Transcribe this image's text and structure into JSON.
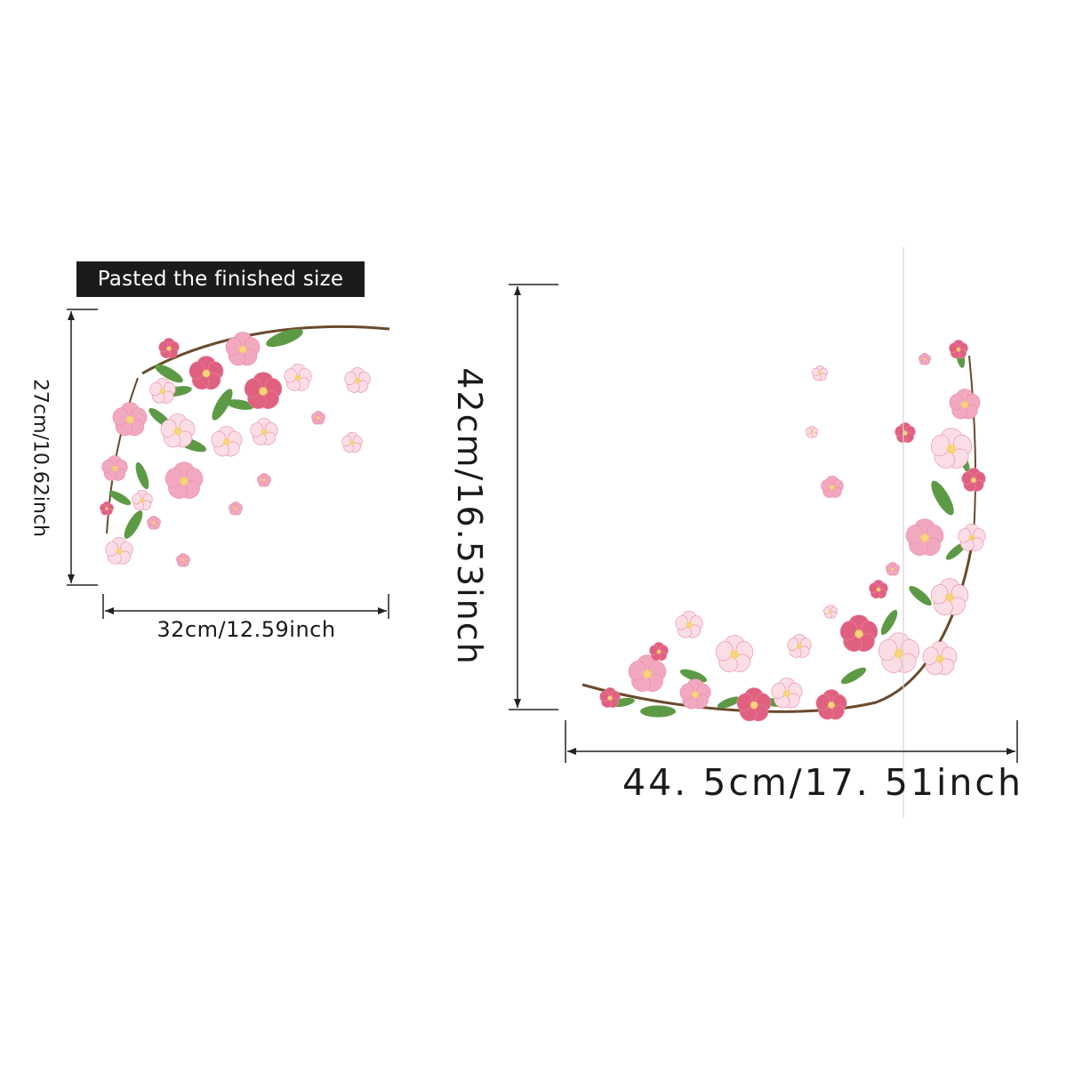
{
  "badge": {
    "text": "Pasted the finished size"
  },
  "left_decal": {
    "width_label": "32cm/12.59inch",
    "height_label": "27cm/10.62inch"
  },
  "right_decal": {
    "width_label": "44. 5cm/17. 51inch",
    "height_label": "42cm/16.53inch"
  },
  "colors": {
    "petal_pink": "#f2a9c0",
    "petal_deep": "#e0607f",
    "petal_pale": "#fbdde6",
    "leaf_green": "#5d9a45",
    "branch_brown": "#6b4a2b",
    "dimension_line": "#222222",
    "badge_bg": "#1b1b1b"
  }
}
